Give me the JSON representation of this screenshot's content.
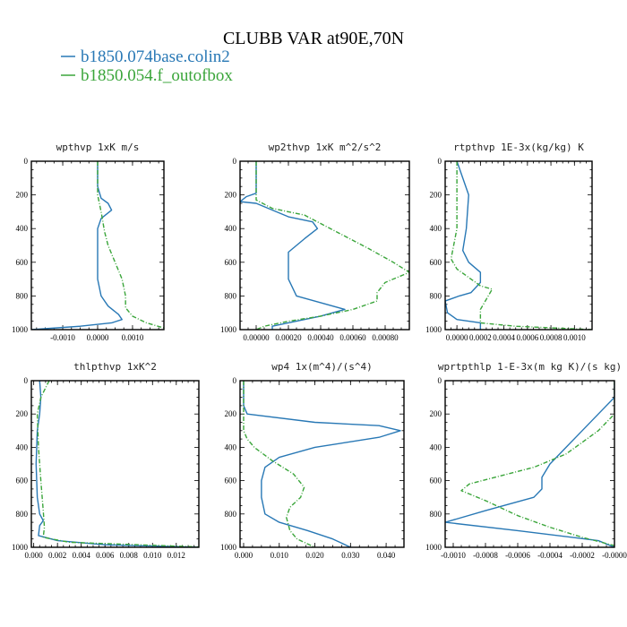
{
  "figure": {
    "title": "CLUBB VAR at90E,70N",
    "legend": [
      {
        "label": "b1850.074base.colin2",
        "color": "#2878b5"
      },
      {
        "label": "b1850.054.f_outofbox",
        "color": "#3aa53a"
      }
    ]
  },
  "chart_data": [
    {
      "type": "line",
      "title": "wpthvp  1xK m/s",
      "xlim": [
        -0.0019,
        0.0019
      ],
      "ylim": [
        1000,
        0
      ],
      "xticks": [
        -0.001,
        0.0,
        0.001
      ],
      "xtick_labels": [
        "-0.0010",
        "0.0000",
        "0.0010"
      ],
      "yticks": [
        0,
        200,
        400,
        600,
        800,
        1000
      ],
      "ytick_labels": [
        "0",
        "200",
        "400",
        "600",
        "800",
        "1000"
      ],
      "series": [
        {
          "name": "b1850.074base.colin2",
          "color": "#2878b5",
          "dash": "",
          "points": [
            [
              0.0,
              0
            ],
            [
              0.0,
              150
            ],
            [
              0.0001,
              220
            ],
            [
              0.0003,
              250
            ],
            [
              0.0004,
              290
            ],
            [
              0.0001,
              340
            ],
            [
              0.0,
              400
            ],
            [
              0.0,
              500
            ],
            [
              0.0,
              600
            ],
            [
              0.0,
              700
            ],
            [
              0.0001,
              800
            ],
            [
              0.0003,
              860
            ],
            [
              0.0006,
              910
            ],
            [
              0.0007,
              940
            ],
            [
              0.0004,
              960
            ],
            [
              -0.0005,
              980
            ],
            [
              -0.0019,
              1000
            ]
          ]
        },
        {
          "name": "b1850.054.f_outofbox",
          "color": "#3aa53a",
          "dash": "5,2,1,2",
          "points": [
            [
              0.0,
              0
            ],
            [
              0.0,
              100
            ],
            [
              0.0,
              200
            ],
            [
              0.0001,
              300
            ],
            [
              0.0002,
              420
            ],
            [
              0.0003,
              500
            ],
            [
              0.0005,
              600
            ],
            [
              0.0007,
              700
            ],
            [
              0.0008,
              800
            ],
            [
              0.0008,
              870
            ],
            [
              0.001,
              920
            ],
            [
              0.0014,
              960
            ],
            [
              0.0019,
              990
            ]
          ]
        }
      ]
    },
    {
      "type": "line",
      "title": "wp2thvp  1xK m^2/s^2",
      "xlim": [
        -0.0001,
        0.00095
      ],
      "ylim": [
        1000,
        0
      ],
      "xticks": [
        0.0,
        0.0002,
        0.0004,
        0.0006,
        0.0008
      ],
      "xtick_labels": [
        "0.00000",
        "0.00020",
        "0.00040",
        "0.00060",
        "0.00080"
      ],
      "yticks": [
        0,
        200,
        400,
        600,
        800,
        1000
      ],
      "ytick_labels": [
        "0",
        "200",
        "400",
        "600",
        "800",
        "1000"
      ],
      "series": [
        {
          "name": "b1850.074base.colin2",
          "color": "#2878b5",
          "dash": "",
          "points": [
            [
              0.0,
              0
            ],
            [
              0.0,
              150
            ],
            [
              0.0,
              190
            ],
            [
              -6e-05,
              210
            ],
            [
              -0.0001,
              240
            ],
            [
              0.0,
              250
            ],
            [
              0.0002,
              330
            ],
            [
              0.00035,
              360
            ],
            [
              0.00038,
              400
            ],
            [
              0.0003,
              460
            ],
            [
              0.0002,
              540
            ],
            [
              0.0002,
              600
            ],
            [
              0.0002,
              700
            ],
            [
              0.00025,
              800
            ],
            [
              0.0004,
              840
            ],
            [
              0.00055,
              880
            ],
            [
              0.0004,
              920
            ],
            [
              0.00025,
              950
            ],
            [
              0.0001,
              980
            ],
            [
              0.0001,
              1000
            ]
          ]
        },
        {
          "name": "b1850.054.f_outofbox",
          "color": "#3aa53a",
          "dash": "5,2,1,2",
          "points": [
            [
              0.0,
              0
            ],
            [
              0.0,
              150
            ],
            [
              0.0,
              230
            ],
            [
              0.0001,
              280
            ],
            [
              0.0003,
              320
            ],
            [
              0.0005,
              420
            ],
            [
              0.0007,
              520
            ],
            [
              0.00085,
              600
            ],
            [
              0.00095,
              660
            ],
            [
              0.0008,
              720
            ],
            [
              0.00075,
              780
            ],
            [
              0.00075,
              830
            ],
            [
              0.0006,
              880
            ],
            [
              0.0004,
              920
            ],
            [
              0.0002,
              950
            ],
            [
              5e-05,
              980
            ],
            [
              0.0,
              1000
            ]
          ]
        }
      ]
    },
    {
      "type": "line",
      "title": "rtpthvp  1E-3x(kg/kg) K",
      "xlim": [
        -0.0001,
        0.00115
      ],
      "ylim": [
        1000,
        0
      ],
      "xticks": [
        0.0,
        0.0002,
        0.0004,
        0.0006,
        0.0008,
        0.001
      ],
      "xtick_labels": [
        "0.0000",
        "0.0002",
        "0.0004",
        "0.0006",
        "0.0008",
        "0.0010"
      ],
      "yticks": [
        0,
        200,
        400,
        600,
        800,
        1000
      ],
      "ytick_labels": [
        "0",
        "200",
        "400",
        "600",
        "800",
        "1000"
      ],
      "series": [
        {
          "name": "b1850.074base.colin2",
          "color": "#2878b5",
          "dash": "",
          "points": [
            [
              0.0,
              0
            ],
            [
              0.0001,
              200
            ],
            [
              8e-05,
              400
            ],
            [
              5e-05,
              530
            ],
            [
              0.0001,
              600
            ],
            [
              0.0002,
              660
            ],
            [
              0.0002,
              720
            ],
            [
              0.00012,
              780
            ],
            [
              2e-05,
              800
            ],
            [
              -0.0001,
              830
            ],
            [
              -8e-05,
              900
            ],
            [
              0.0,
              940
            ],
            [
              0.0002,
              960
            ],
            [
              0.0002,
              1000
            ]
          ]
        },
        {
          "name": "b1850.054.f_outofbox",
          "color": "#3aa53a",
          "dash": "5,2,1,2",
          "points": [
            [
              0.0,
              0
            ],
            [
              0.0,
              200
            ],
            [
              0.0,
              400
            ],
            [
              -5e-05,
              580
            ],
            [
              0.0,
              640
            ],
            [
              0.0002,
              740
            ],
            [
              0.0003,
              760
            ],
            [
              0.0002,
              880
            ],
            [
              0.0002,
              920
            ],
            [
              0.0002,
              960
            ],
            [
              0.0005,
              980
            ],
            [
              0.00115,
              1000
            ]
          ]
        }
      ]
    },
    {
      "type": "line",
      "title": "thlpthvp  1xK^2",
      "xlim": [
        -0.0002,
        0.0139
      ],
      "ylim": [
        1000,
        0
      ],
      "xticks": [
        0.0,
        0.002,
        0.004,
        0.006,
        0.008,
        0.01,
        0.012
      ],
      "xtick_labels": [
        "0.000",
        "0.002",
        "0.004",
        "0.006",
        "0.008",
        "0.010",
        "0.012"
      ],
      "yticks": [
        0,
        200,
        400,
        600,
        800,
        1000
      ],
      "ytick_labels": [
        "0",
        "200",
        "400",
        "600",
        "800",
        "1000"
      ],
      "series": [
        {
          "name": "b1850.074base.colin2",
          "color": "#2878b5",
          "dash": "",
          "points": [
            [
              0.0005,
              0
            ],
            [
              0.0006,
              100
            ],
            [
              0.0005,
              200
            ],
            [
              0.0003,
              300
            ],
            [
              0.0002,
              500
            ],
            [
              0.0003,
              700
            ],
            [
              0.0005,
              800
            ],
            [
              0.0008,
              840
            ],
            [
              0.0005,
              870
            ],
            [
              0.0004,
              930
            ],
            [
              0.002,
              960
            ],
            [
              0.006,
              985
            ],
            [
              0.0139,
              1000
            ]
          ]
        },
        {
          "name": "b1850.054.f_outofbox",
          "color": "#3aa53a",
          "dash": "5,2,1,2",
          "points": [
            [
              0.0013,
              0
            ],
            [
              0.0006,
              100
            ],
            [
              0.0003,
              200
            ],
            [
              0.0004,
              400
            ],
            [
              0.0006,
              600
            ],
            [
              0.0008,
              780
            ],
            [
              0.0009,
              880
            ],
            [
              0.0008,
              940
            ],
            [
              0.003,
              970
            ],
            [
              0.0139,
              998
            ]
          ]
        }
      ]
    },
    {
      "type": "line",
      "title": "wp4  1x(m^4)/(s^4)",
      "xlim": [
        -0.001,
        0.045
      ],
      "ylim": [
        1000,
        0
      ],
      "xticks": [
        0.0,
        0.01,
        0.02,
        0.03,
        0.04
      ],
      "xtick_labels": [
        "0.000",
        "0.010",
        "0.020",
        "0.030",
        "0.040"
      ],
      "yticks": [
        0,
        200,
        400,
        600,
        800,
        1000
      ],
      "ytick_labels": [
        "0",
        "200",
        "400",
        "600",
        "800",
        "1000"
      ],
      "series": [
        {
          "name": "b1850.074base.colin2",
          "color": "#2878b5",
          "dash": "",
          "points": [
            [
              0.0,
              0
            ],
            [
              0.0,
              150
            ],
            [
              0.001,
              200
            ],
            [
              0.02,
              250
            ],
            [
              0.038,
              270
            ],
            [
              0.044,
              300
            ],
            [
              0.038,
              340
            ],
            [
              0.02,
              400
            ],
            [
              0.01,
              460
            ],
            [
              0.006,
              520
            ],
            [
              0.005,
              600
            ],
            [
              0.005,
              700
            ],
            [
              0.006,
              800
            ],
            [
              0.01,
              850
            ],
            [
              0.018,
              900
            ],
            [
              0.025,
              950
            ],
            [
              0.03,
              1000
            ]
          ]
        },
        {
          "name": "b1850.054.f_outofbox",
          "color": "#3aa53a",
          "dash": "5,2,1,2",
          "points": [
            [
              0.0,
              0
            ],
            [
              0.0,
              200
            ],
            [
              0.0,
              300
            ],
            [
              0.001,
              350
            ],
            [
              0.003,
              400
            ],
            [
              0.008,
              480
            ],
            [
              0.014,
              560
            ],
            [
              0.017,
              640
            ],
            [
              0.016,
              700
            ],
            [
              0.013,
              760
            ],
            [
              0.012,
              820
            ],
            [
              0.013,
              900
            ],
            [
              0.015,
              950
            ],
            [
              0.02,
              1000
            ]
          ]
        }
      ]
    },
    {
      "type": "line",
      "title": "wprtpthlp  1-E-3x(m kg K)/(s kg)",
      "xlim": [
        -0.00105,
        0.0
      ],
      "ylim": [
        1000,
        0
      ],
      "xticks": [
        -0.001,
        -0.0008,
        -0.0006,
        -0.0004,
        -0.0002,
        0.0
      ],
      "xtick_labels": [
        "-0.0010",
        "-0.0008",
        "-0.0006",
        "-0.0004",
        "-0.0002",
        "-0.0000"
      ],
      "yticks": [
        0,
        200,
        400,
        600,
        800,
        1000
      ],
      "ytick_labels": [
        "0",
        "200",
        "400",
        "600",
        "800",
        "1000"
      ],
      "series": [
        {
          "name": "b1850.074base.colin2",
          "color": "#2878b5",
          "dash": "",
          "points": [
            [
              0.0,
              0
            ],
            [
              0.0,
              100
            ],
            [
              -0.0001,
              200
            ],
            [
              -0.0002,
              300
            ],
            [
              -0.0003,
              400
            ],
            [
              -0.0004,
              500
            ],
            [
              -0.00045,
              580
            ],
            [
              -0.00045,
              650
            ],
            [
              -0.0005,
              700
            ],
            [
              -0.0008,
              780
            ],
            [
              -0.00105,
              850
            ],
            [
              -0.0006,
              900
            ],
            [
              -0.0001,
              960
            ],
            [
              0.0,
              1000
            ]
          ]
        },
        {
          "name": "b1850.054.f_outofbox",
          "color": "#3aa53a",
          "dash": "5,2,1,2",
          "points": [
            [
              0.0,
              0
            ],
            [
              0.0,
              200
            ],
            [
              -0.0001,
              300
            ],
            [
              -0.0003,
              440
            ],
            [
              -0.0005,
              520
            ],
            [
              -0.0009,
              620
            ],
            [
              -0.00095,
              660
            ],
            [
              -0.0008,
              720
            ],
            [
              -0.0006,
              810
            ],
            [
              -0.0004,
              880
            ],
            [
              -0.0002,
              940
            ],
            [
              0.0,
              990
            ]
          ]
        }
      ]
    }
  ]
}
